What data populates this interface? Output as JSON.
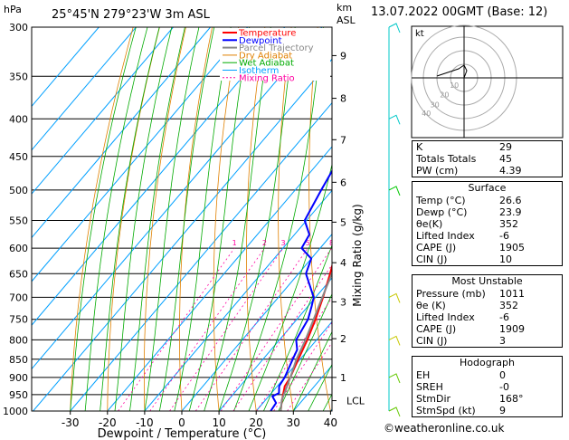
{
  "header": {
    "location": "25°45'N 279°23'W 3m ASL",
    "pressure_unit": "hPa",
    "km_label": "km",
    "asl_label": "ASL",
    "datetime": "13.07.2022 00GMT (Base: 12)"
  },
  "chart_data": {
    "type": "line",
    "title": "",
    "xlabel": "Dewpoint / Temperature (°C)",
    "ylabel": "hPa",
    "right_label": "Mixing Ratio (g/kg)",
    "xlim": [
      -35,
      40
    ],
    "ylim": [
      1000,
      300
    ],
    "y_scale": "log",
    "skew": "temperature isotherms skewed to the right",
    "x_ticks": [
      "-30",
      "-20",
      "-10",
      "0",
      "10",
      "20",
      "30",
      "40"
    ],
    "pressure_levels": [
      300,
      350,
      400,
      450,
      500,
      550,
      600,
      650,
      700,
      750,
      800,
      850,
      900,
      950,
      1000
    ],
    "km_ticks": [
      {
        "km": 1,
        "p": 900
      },
      {
        "km": 2,
        "p": 797
      },
      {
        "km": 3,
        "p": 710
      },
      {
        "km": 4,
        "p": 628
      },
      {
        "km": 5,
        "p": 553
      },
      {
        "km": 6,
        "p": 488
      },
      {
        "km": 7,
        "p": 427
      },
      {
        "km": 8,
        "p": 375
      },
      {
        "km": 9,
        "p": 328
      }
    ],
    "lcl": {
      "label": "LCL",
      "p": 968
    },
    "mixing_ratio_labels": [
      "1",
      "2",
      "3",
      "5",
      "8",
      "10",
      "15",
      "20",
      "25"
    ],
    "legend": [
      "Temperature",
      "Dewpoint",
      "Parcel Trajectory",
      "Dry Adiabat",
      "Wet Adiabat",
      "Isotherm",
      "Mixing Ratio"
    ],
    "legend_position": "top-center",
    "colors": {
      "temperature": "#ff0000",
      "dewpoint": "#0000ff",
      "parcel": "#888888",
      "dry_adiabat": "#e08000",
      "wet_adiabat": "#00aa00",
      "isotherm": "#00a0ff",
      "mixing_ratio": "#ff00a0"
    },
    "series": [
      {
        "name": "Temperature",
        "points": [
          [
            1000,
            26.6
          ],
          [
            975,
            25.0
          ],
          [
            950,
            23.5
          ],
          [
            925,
            22.0
          ],
          [
            900,
            21.5
          ],
          [
            875,
            20.5
          ],
          [
            850,
            19.5
          ],
          [
            800,
            17.5
          ],
          [
            750,
            15.0
          ],
          [
            700,
            12.0
          ],
          [
            650,
            8.5
          ],
          [
            600,
            4.5
          ],
          [
            550,
            1.0
          ],
          [
            500,
            -3.5
          ],
          [
            450,
            -8.5
          ],
          [
            400,
            -14.5
          ],
          [
            350,
            -21.5
          ],
          [
            300,
            -30.0
          ]
        ]
      },
      {
        "name": "Dewpoint",
        "points": [
          [
            1000,
            23.9
          ],
          [
            975,
            23.5
          ],
          [
            955,
            21.0
          ],
          [
            945,
            22.0
          ],
          [
            925,
            20.5
          ],
          [
            900,
            20.0
          ],
          [
            850,
            18.0
          ],
          [
            825,
            17.0
          ],
          [
            800,
            14.5
          ],
          [
            750,
            13.0
          ],
          [
            720,
            11.0
          ],
          [
            700,
            9.5
          ],
          [
            650,
            2.0
          ],
          [
            620,
            0.0
          ],
          [
            600,
            -5.0
          ],
          [
            575,
            -6.0
          ],
          [
            550,
            -10.5
          ],
          [
            500,
            -13.0
          ],
          [
            450,
            -15.5
          ],
          [
            420,
            -16.0
          ],
          [
            400,
            -26.0
          ],
          [
            370,
            -28.0
          ],
          [
            350,
            -35.0
          ],
          [
            330,
            -35.0
          ],
          [
            315,
            -33.0
          ],
          [
            300,
            -38.0
          ]
        ]
      },
      {
        "name": "Parcel Trajectory",
        "points": [
          [
            1000,
            26.6
          ],
          [
            968,
            24.5
          ],
          [
            900,
            21.5
          ],
          [
            850,
            19.0
          ],
          [
            800,
            17.0
          ],
          [
            750,
            14.5
          ],
          [
            700,
            11.8
          ],
          [
            650,
            9.0
          ],
          [
            600,
            5.8
          ],
          [
            550,
            2.0
          ],
          [
            500,
            -2.0
          ],
          [
            450,
            -6.8
          ],
          [
            400,
            -12.5
          ],
          [
            350,
            -19.5
          ],
          [
            300,
            -28.0
          ]
        ]
      }
    ]
  },
  "hodograph": {
    "label": "kt",
    "ring_labels": [
      "10",
      "20",
      "30",
      "40"
    ]
  },
  "indices": {
    "rows": [
      {
        "key": "K",
        "value": "29"
      },
      {
        "key": "Totals Totals",
        "value": "45"
      },
      {
        "key": "PW (cm)",
        "value": "4.39"
      }
    ]
  },
  "surface": {
    "title": "Surface",
    "rows": [
      {
        "key": "Temp (°C)",
        "value": "26.6"
      },
      {
        "key": "Dewp (°C)",
        "value": "23.9"
      },
      {
        "key": "θe(K)",
        "value": "352"
      },
      {
        "key": "Lifted Index",
        "value": "-6"
      },
      {
        "key": "CAPE (J)",
        "value": "1905"
      },
      {
        "key": "CIN (J)",
        "value": "10"
      }
    ]
  },
  "most_unstable": {
    "title": "Most Unstable",
    "rows": [
      {
        "key": "Pressure (mb)",
        "value": "1011"
      },
      {
        "key": "θe (K)",
        "value": "352"
      },
      {
        "key": "Lifted Index",
        "value": "-6"
      },
      {
        "key": "CAPE (J)",
        "value": "1909"
      },
      {
        "key": "CIN (J)",
        "value": "3"
      }
    ]
  },
  "hodograph_params": {
    "title": "Hodograph",
    "rows": [
      {
        "key": "EH",
        "value": "0"
      },
      {
        "key": "SREH",
        "value": "-0"
      },
      {
        "key": "StmDir",
        "value": "168°"
      },
      {
        "key": "StmSpd (kt)",
        "value": "9"
      }
    ]
  },
  "footer": {
    "copyright_symbol": "©",
    "site": "weatheronline.co.uk"
  }
}
